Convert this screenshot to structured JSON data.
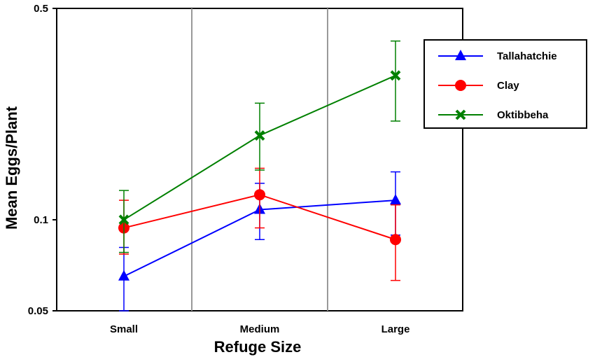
{
  "chart_data": {
    "type": "line",
    "xlabel": "Refuge Size",
    "ylabel": "Mean Eggs/Plant",
    "categories": [
      "Small",
      "Medium",
      "Large"
    ],
    "y_scale": "log",
    "ylim": [
      0.05,
      0.5
    ],
    "yticks": [
      {
        "value": 0.05,
        "label": "0.05"
      },
      {
        "value": 0.1,
        "label": "0.1"
      },
      {
        "value": 0.5,
        "label": "0.5"
      }
    ],
    "grid": "vertical separators between categories",
    "legend_position": "right",
    "series": [
      {
        "name": "Tallahatchie",
        "color": "#0000ff",
        "marker": "triangle",
        "values": [
          0.065,
          0.108,
          0.116
        ],
        "err_low": [
          0.05,
          0.086,
          0.089
        ],
        "err_high": [
          0.081,
          0.132,
          0.144
        ]
      },
      {
        "name": "Clay",
        "color": "#ff0000",
        "marker": "circle",
        "values": [
          0.094,
          0.121,
          0.086
        ],
        "err_low": [
          0.077,
          0.094,
          0.063
        ],
        "err_high": [
          0.116,
          0.148,
          0.112
        ]
      },
      {
        "name": "Oktibbeha",
        "color": "#008000",
        "marker": "x",
        "values": [
          0.1,
          0.19,
          0.3
        ],
        "err_low": [
          0.078,
          0.146,
          0.212
        ],
        "err_high": [
          0.125,
          0.243,
          0.39
        ]
      }
    ]
  }
}
